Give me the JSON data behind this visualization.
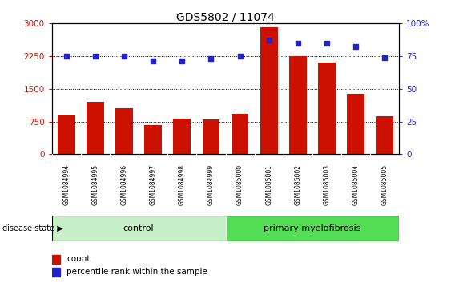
{
  "title": "GDS5802 / 11074",
  "samples": [
    "GSM1084994",
    "GSM1084995",
    "GSM1084996",
    "GSM1084997",
    "GSM1084998",
    "GSM1084999",
    "GSM1085000",
    "GSM1085001",
    "GSM1085002",
    "GSM1085003",
    "GSM1085004",
    "GSM1085005"
  ],
  "counts": [
    880,
    1200,
    1050,
    670,
    820,
    800,
    920,
    2900,
    2250,
    2100,
    1380,
    870
  ],
  "percentile_ranks": [
    75,
    75,
    75,
    71,
    71,
    73,
    75,
    87,
    85,
    85,
    82,
    74
  ],
  "control_count": 6,
  "bar_color": "#cc1100",
  "dot_color": "#2222cc",
  "control_color": "#c8f0c8",
  "primary_color": "#55dd55",
  "label_bg_color": "#cccccc",
  "ylim_left": [
    0,
    3000
  ],
  "ylim_right": [
    0,
    100
  ],
  "yticks_left": [
    0,
    750,
    1500,
    2250,
    3000
  ],
  "ytick_labels_left": [
    "0",
    "750",
    "1500",
    "2250",
    "3000"
  ],
  "yticks_right": [
    0,
    25,
    50,
    75,
    100
  ],
  "ytick_labels_right": [
    "0",
    "25",
    "50",
    "75",
    "100%"
  ],
  "legend_count_label": "count",
  "legend_pct_label": "percentile rank within the sample",
  "disease_state_label": "disease state",
  "control_label": "control",
  "primary_label": "primary myelofibrosis"
}
